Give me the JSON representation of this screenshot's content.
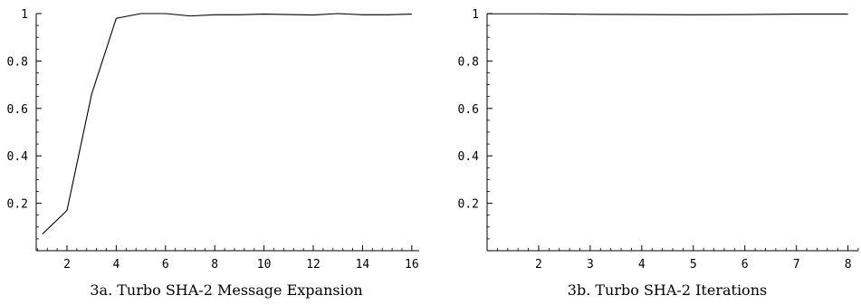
{
  "chart_data": [
    {
      "type": "line",
      "title": "3a. Turbo SHA-2 Message Expansion",
      "xlabel": "",
      "ylabel": "",
      "xlim": [
        0.75,
        16.3
      ],
      "ylim": [
        0,
        1
      ],
      "x_ticks": [
        2,
        4,
        6,
        8,
        10,
        12,
        14,
        16
      ],
      "x_tick_labels": [
        "2",
        "4",
        "6",
        "8",
        "10",
        "12",
        "14",
        "16"
      ],
      "y_ticks": [
        0.2,
        0.4,
        0.6,
        0.8,
        1
      ],
      "y_tick_labels": [
        "0.2",
        "0.4",
        "0.6",
        "0.8",
        "1"
      ],
      "series": [
        {
          "x": [
            1,
            2,
            3,
            4,
            5,
            6,
            7,
            8,
            9,
            10,
            11,
            12,
            13,
            14,
            15,
            16
          ],
          "values": [
            0.07,
            0.17,
            0.66,
            0.98,
            1.0,
            1.0,
            0.99,
            0.995,
            0.995,
            0.998,
            0.996,
            0.994,
            1.0,
            0.995,
            0.995,
            0.998
          ]
        }
      ],
      "grid": false,
      "color": "#000000"
    },
    {
      "type": "line",
      "title": "3b. Turbo SHA-2 Iterations",
      "xlabel": "",
      "ylabel": "",
      "xlim": [
        1,
        8.2
      ],
      "ylim": [
        0,
        1
      ],
      "x_ticks": [
        2,
        3,
        4,
        5,
        6,
        7,
        8
      ],
      "x_tick_labels": [
        "2",
        "3",
        "4",
        "5",
        "6",
        "7",
        "8"
      ],
      "y_ticks": [
        0.2,
        0.4,
        0.6,
        0.8,
        1
      ],
      "y_tick_labels": [
        "0.2",
        "0.4",
        "0.6",
        "0.8",
        "1"
      ],
      "series": [
        {
          "x": [
            1,
            2,
            3,
            4,
            5,
            6,
            7,
            8
          ],
          "values": [
            0.999,
            0.999,
            0.997,
            0.996,
            0.995,
            0.996,
            0.998,
            0.998
          ]
        }
      ],
      "grid": false,
      "color": "#000000"
    }
  ]
}
